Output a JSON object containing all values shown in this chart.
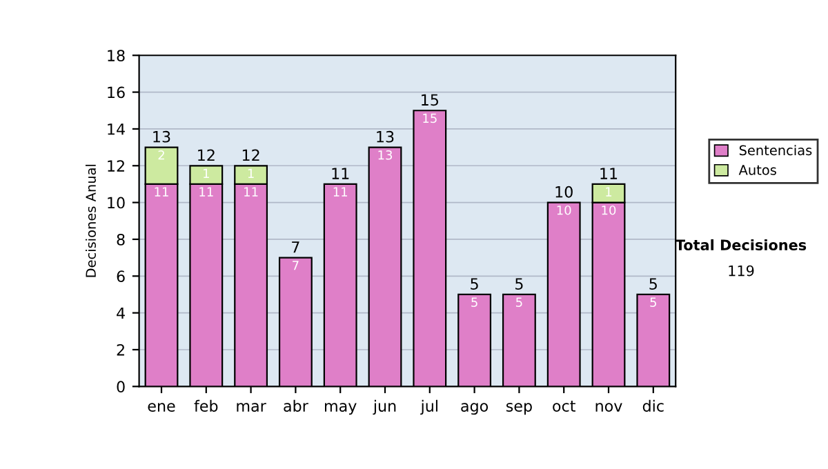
{
  "chart_data": {
    "type": "bar",
    "stacked": true,
    "ylabel": "Decisiones Anual",
    "categories": [
      "ene",
      "feb",
      "mar",
      "abr",
      "may",
      "jun",
      "jul",
      "ago",
      "sep",
      "oct",
      "nov",
      "dic"
    ],
    "series": [
      {
        "name": "Sentencias",
        "color": "#df7fc8",
        "values": [
          11,
          11,
          11,
          7,
          11,
          13,
          15,
          5,
          5,
          10,
          10,
          5
        ],
        "value_labels": [
          "11",
          "11",
          "11",
          "7",
          "11",
          "13",
          "15",
          "5",
          "5",
          "10",
          "10",
          "5"
        ]
      },
      {
        "name": "Autos",
        "color": "#cdeaa0",
        "values": [
          2,
          1,
          1,
          null,
          null,
          null,
          null,
          null,
          null,
          null,
          1,
          null
        ],
        "value_labels": [
          "2",
          "1",
          "1",
          null,
          null,
          null,
          null,
          null,
          null,
          null,
          "1",
          null
        ]
      }
    ],
    "totals": [
      "13",
      "12",
      "12",
      "7",
      "11",
      "13",
      "15",
      "5",
      "5",
      "10",
      "11",
      "5"
    ],
    "ylim": [
      0,
      18
    ],
    "yticks": [
      0,
      2,
      4,
      6,
      8,
      10,
      12,
      14,
      16,
      18
    ],
    "grid": "y",
    "legend": "right",
    "annotations": [
      "Total Decisiones",
      "119"
    ]
  }
}
